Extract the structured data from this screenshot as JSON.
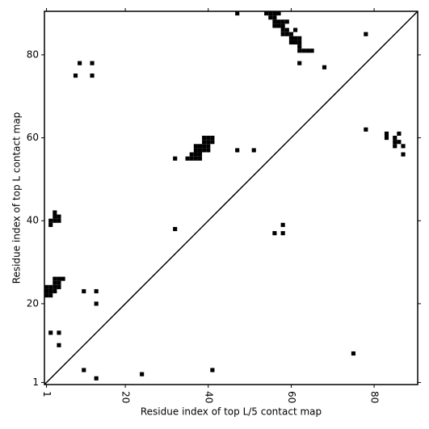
{
  "chart_data": {
    "type": "scatter",
    "xlabel": "Residue index of top L/5 contact map",
    "ylabel": "Residue index of top L contact map",
    "xlim": [
      0.5,
      90.5
    ],
    "ylim": [
      0.5,
      90.5
    ],
    "xticks": [
      1,
      20,
      40,
      60,
      80
    ],
    "yticks": [
      1,
      20,
      40,
      60,
      80
    ],
    "marker": "square",
    "series": [
      {
        "color": "#000000",
        "x": [
          8,
          9,
          12,
          12,
          47,
          54,
          55,
          56,
          57,
          55,
          56,
          56,
          57,
          58,
          59,
          56,
          57,
          58,
          58,
          59,
          58,
          59,
          60,
          61,
          60,
          61,
          62,
          60,
          61,
          62,
          62,
          62,
          63,
          64,
          65,
          78,
          62,
          68,
          32,
          35,
          36,
          37,
          38,
          36,
          37,
          38,
          37,
          38,
          39,
          40,
          37,
          38,
          39,
          40,
          39,
          40,
          41,
          39,
          40,
          41,
          47,
          51,
          56,
          58,
          58,
          32,
          2,
          2,
          3,
          4,
          3,
          4,
          3,
          1,
          2,
          1,
          2,
          3,
          1,
          2,
          3,
          4,
          3,
          4,
          3,
          4,
          5,
          10,
          13,
          13,
          2,
          4,
          4,
          10,
          13,
          24,
          41,
          75,
          78,
          83,
          83,
          85,
          86,
          86,
          85,
          85,
          87,
          87
        ],
        "y": [
          75,
          78,
          78,
          75,
          90,
          90,
          90,
          90,
          90,
          89,
          89,
          88,
          88,
          88,
          88,
          87,
          87,
          87,
          86,
          86,
          85,
          85,
          85,
          86,
          84,
          84,
          84,
          83,
          83,
          83,
          82,
          81,
          81,
          81,
          81,
          85,
          78,
          77,
          55,
          55,
          55,
          55,
          55,
          56,
          56,
          56,
          57,
          57,
          57,
          57,
          58,
          58,
          58,
          58,
          59,
          59,
          59,
          60,
          60,
          60,
          57,
          57,
          37,
          39,
          37,
          38,
          39,
          40,
          40,
          40,
          41,
          41,
          42,
          22,
          22,
          23,
          23,
          23,
          24,
          24,
          24,
          24,
          25,
          25,
          26,
          26,
          26,
          23,
          23,
          20,
          13,
          13,
          10,
          4,
          2,
          3,
          4,
          8,
          62,
          61,
          60,
          60,
          61,
          59,
          59,
          58,
          58,
          56
        ]
      }
    ]
  }
}
